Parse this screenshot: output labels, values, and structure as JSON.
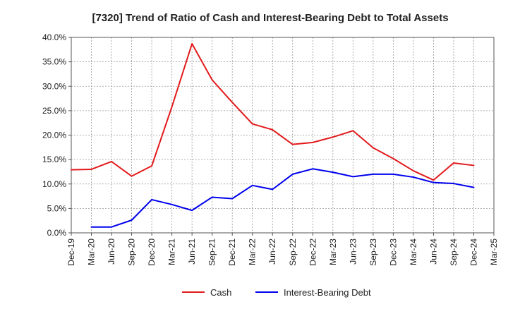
{
  "chart_data": {
    "type": "line",
    "title": "[7320]  Trend of Ratio of Cash and Interest-Bearing Debt to Total Assets",
    "xlabel": "",
    "ylabel": "",
    "ylim": [
      0,
      40
    ],
    "yticks": [
      0,
      5,
      10,
      15,
      20,
      25,
      30,
      35,
      40
    ],
    "ytick_labels": [
      "0.0%",
      "5.0%",
      "10.0%",
      "15.0%",
      "20.0%",
      "25.0%",
      "30.0%",
      "35.0%",
      "40.0%"
    ],
    "categories": [
      "Dec-19",
      "Mar-20",
      "Jun-20",
      "Sep-20",
      "Dec-20",
      "Mar-21",
      "Jun-21",
      "Sep-21",
      "Dec-21",
      "Mar-22",
      "Jun-22",
      "Sep-22",
      "Dec-22",
      "Mar-23",
      "Jun-23",
      "Sep-23",
      "Dec-23",
      "Mar-24",
      "Jun-24",
      "Sep-24",
      "Dec-24",
      "Mar-25"
    ],
    "grid": true,
    "legend_position": "bottom",
    "series": [
      {
        "name": "Cash",
        "color": "#e31a1c",
        "values": [
          12.9,
          13.0,
          14.6,
          11.6,
          13.7,
          25.8,
          38.7,
          31.3,
          26.7,
          22.3,
          21.1,
          18.1,
          18.5,
          19.6,
          20.9,
          17.4,
          15.2,
          12.7,
          10.8,
          14.3,
          13.8,
          null
        ]
      },
      {
        "name": "Interest-Bearing Debt",
        "color": "#0000ee",
        "values": [
          null,
          1.2,
          1.2,
          2.6,
          6.8,
          5.8,
          4.6,
          7.3,
          7.0,
          9.7,
          8.9,
          12.0,
          13.1,
          12.4,
          11.5,
          12.0,
          12.0,
          11.4,
          10.3,
          10.1,
          9.3,
          null
        ]
      }
    ]
  },
  "colors": {
    "axis": "#555555",
    "grid": "#999999",
    "background": "#ffffff"
  }
}
